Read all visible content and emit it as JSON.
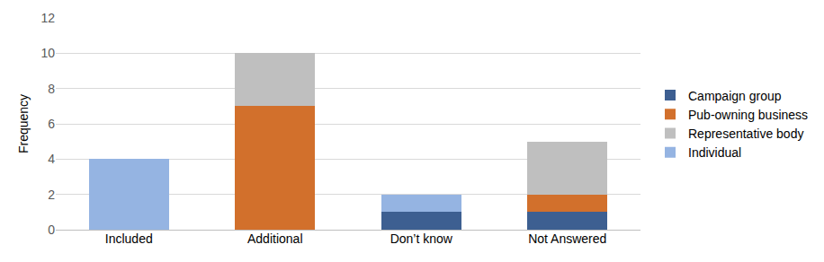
{
  "chart_data": {
    "type": "bar",
    "stacked": true,
    "y_label": "Frequency",
    "categories": [
      "Included",
      "Additional",
      "Don’t know",
      "Not Answered"
    ],
    "series": [
      {
        "name": "Campaign group",
        "color": "#3d5f91",
        "values": [
          0,
          0,
          1,
          1
        ]
      },
      {
        "name": "Pub-owning business",
        "color": "#d2702c",
        "values": [
          0,
          7,
          0,
          1
        ]
      },
      {
        "name": "Representative body",
        "color": "#bfbfbf",
        "values": [
          0,
          3,
          0,
          3
        ]
      },
      {
        "name": "Individual",
        "color": "#95b4e2",
        "values": [
          4,
          0,
          1,
          0
        ]
      }
    ],
    "ylim": [
      0,
      12
    ],
    "yticks": [
      0,
      2,
      4,
      6,
      8,
      10,
      12
    ],
    "grid": true,
    "legend": "right"
  }
}
